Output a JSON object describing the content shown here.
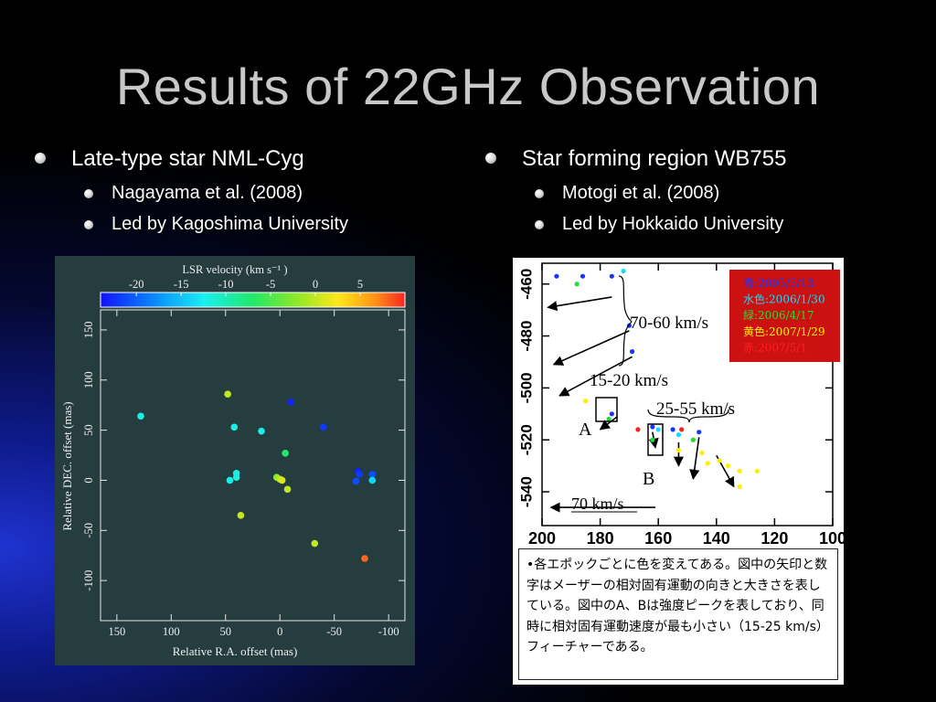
{
  "title": "Results of 22GHz Observation",
  "left": {
    "bullet": "Late-type star NML-Cyg",
    "sub": [
      "Nagayama et al. (2008)",
      "Led by Kagoshima University"
    ]
  },
  "right": {
    "bullet": "Star forming region WB755",
    "sub": [
      "Motogi et al. (2008)",
      "Led by Hokkaido University"
    ]
  },
  "left_figure": {
    "colorbar_title": "LSR velocity (km s⁻¹ )",
    "colorbar_ticks": [
      "-20",
      "-15",
      "-10",
      "-5",
      "0",
      "5"
    ]
  },
  "right_figure": {
    "annotations": [
      "70-60 km/s",
      "15-20 km/s",
      "25-55 km/s",
      "A",
      "B",
      "70 km/s"
    ],
    "legend": [
      {
        "text": "青:2005/5/13",
        "color": "#1a34ff"
      },
      {
        "text": "水色:2006/1/30",
        "color": "#19d9ff"
      },
      {
        "text": "緑:2006/4/17",
        "color": "#22dd33"
      },
      {
        "text": "黄色:2007/1/29",
        "color": "#ffee00"
      },
      {
        "text": "赤:2007/5/1",
        "color": "#ff2020"
      }
    ],
    "note": "•各エポックごとに色を変えてある。図中の矢印と数字はメーザーの相対固有運動の向きと大きさを表している。図中のA、Bは強度ピークを表しており、同時に相対固有運動速度が最も小さい（15-25 km/s）フィーチャーである。"
  },
  "chart_data": [
    {
      "type": "scatter",
      "title": "",
      "xlabel": "Relative R.A. offset (mas)",
      "ylabel": "Relative DEC. offset (mas)",
      "xlim": [
        165,
        -115
      ],
      "ylim": [
        -140,
        170
      ],
      "x_ticks": [
        "150",
        "100",
        "50",
        "0",
        "-50",
        "-100"
      ],
      "y_ticks": [
        "150",
        "100",
        "50",
        "0",
        "-50",
        "-100"
      ],
      "color_scale": {
        "label": "LSR velocity (km s⁻¹ )",
        "range": [
          -24,
          10
        ]
      },
      "points": [
        {
          "x": 48,
          "y": 86,
          "v": 0
        },
        {
          "x": -10,
          "y": 78,
          "v": -23
        },
        {
          "x": 128,
          "y": 64,
          "v": -12
        },
        {
          "x": 42,
          "y": 53,
          "v": -12
        },
        {
          "x": 17,
          "y": 49,
          "v": -12
        },
        {
          "x": -40,
          "y": 53,
          "v": -22
        },
        {
          "x": -5,
          "y": 27,
          "v": -7
        },
        {
          "x": 40,
          "y": 7,
          "v": -12
        },
        {
          "x": 40,
          "y": 3,
          "v": -12
        },
        {
          "x": 46,
          "y": 0,
          "v": -12
        },
        {
          "x": -72,
          "y": 9,
          "v": -23
        },
        {
          "x": -73,
          "y": 6,
          "v": -22
        },
        {
          "x": -85,
          "y": 6,
          "v": -21
        },
        {
          "x": -85,
          "y": 0,
          "v": -14
        },
        {
          "x": -70,
          "y": -1,
          "v": -21
        },
        {
          "x": 3,
          "y": 3,
          "v": -2
        },
        {
          "x": 0,
          "y": 1,
          "v": 0
        },
        {
          "x": -2,
          "y": 0,
          "v": 1
        },
        {
          "x": -7,
          "y": -9,
          "v": 0
        },
        {
          "x": 36,
          "y": -35,
          "v": 0
        },
        {
          "x": -32,
          "y": -63,
          "v": 0
        },
        {
          "x": -78,
          "y": -78,
          "v": 8
        }
      ]
    },
    {
      "type": "scatter",
      "title": "",
      "xlabel": "",
      "ylabel": "",
      "xlim": [
        200,
        100
      ],
      "ylim": [
        -553,
        -452
      ],
      "x_ticks": [
        "200",
        "180",
        "160",
        "140",
        "120",
        "100"
      ],
      "y_ticks": [
        "-460",
        "-480",
        "-500",
        "-520",
        "-540"
      ],
      "points": [
        {
          "x": 195,
          "y": -457,
          "c": "#1a34ff"
        },
        {
          "x": 186,
          "y": -457,
          "c": "#1a34ff"
        },
        {
          "x": 176,
          "y": -457,
          "c": "#1a34ff"
        },
        {
          "x": 172,
          "y": -455,
          "c": "#19d9ff"
        },
        {
          "x": 188,
          "y": -460,
          "c": "#22dd33"
        },
        {
          "x": 170,
          "y": -476,
          "c": "#1a34ff"
        },
        {
          "x": 169,
          "y": -486,
          "c": "#1a34ff"
        },
        {
          "x": 185,
          "y": -505,
          "c": "#ffee00"
        },
        {
          "x": 176,
          "y": -510,
          "c": "#1a34ff"
        },
        {
          "x": 177,
          "y": -512,
          "c": "#22dd33"
        },
        {
          "x": 167,
          "y": -516,
          "c": "#ff2020"
        },
        {
          "x": 162,
          "y": -515,
          "c": "#1a34ff"
        },
        {
          "x": 160,
          "y": -516,
          "c": "#19d9ff"
        },
        {
          "x": 162,
          "y": -520,
          "c": "#22dd33"
        },
        {
          "x": 155,
          "y": -516,
          "c": "#1a34ff"
        },
        {
          "x": 153,
          "y": -518,
          "c": "#19d9ff"
        },
        {
          "x": 152,
          "y": -516,
          "c": "#ff2020"
        },
        {
          "x": 146,
          "y": -517,
          "c": "#1a34ff"
        },
        {
          "x": 148,
          "y": -520,
          "c": "#22dd33"
        },
        {
          "x": 153,
          "y": -524,
          "c": "#ffee00"
        },
        {
          "x": 145,
          "y": -525,
          "c": "#ffee00"
        },
        {
          "x": 143,
          "y": -529,
          "c": "#ffee00"
        },
        {
          "x": 139,
          "y": -528,
          "c": "#ffee00"
        },
        {
          "x": 136,
          "y": -530,
          "c": "#ffee00"
        },
        {
          "x": 132,
          "y": -532,
          "c": "#ffee00"
        },
        {
          "x": 126,
          "y": -532,
          "c": "#ffee00"
        },
        {
          "x": 132,
          "y": -538,
          "c": "#ffee00"
        }
      ],
      "arrows": [
        {
          "x1": 176,
          "y1": -465,
          "x2": 198,
          "y2": -469
        },
        {
          "x1": 170,
          "y1": -478,
          "x2": 196,
          "y2": -491
        },
        {
          "x1": 169,
          "y1": -488,
          "x2": 194,
          "y2": -503
        },
        {
          "x1": 174,
          "y1": -511,
          "x2": 180,
          "y2": -516
        },
        {
          "x1": 162,
          "y1": -517,
          "x2": 161,
          "y2": -523
        },
        {
          "x1": 153,
          "y1": -521,
          "x2": 153,
          "y2": -530
        },
        {
          "x1": 146,
          "y1": -519,
          "x2": 148,
          "y2": -535
        },
        {
          "x1": 140,
          "y1": -526,
          "x2": 134,
          "y2": -538
        },
        {
          "x1": 161,
          "y1": -546,
          "x2": 197,
          "y2": -546
        }
      ]
    }
  ]
}
